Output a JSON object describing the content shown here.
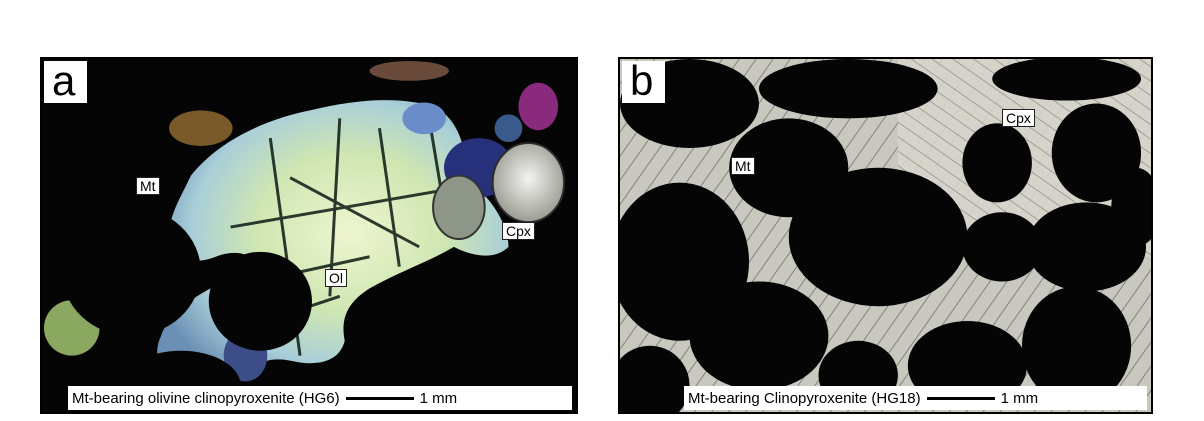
{
  "panels": {
    "a": {
      "letter": "a",
      "labels": {
        "mt": "Mt",
        "ol": "Ol",
        "cpx": "Cpx"
      },
      "caption": "Mt-bearing olivine clinopyroxenite (HG6)",
      "scale": "1 mm"
    },
    "b": {
      "letter": "b",
      "labels": {
        "mt": "Mt",
        "cpx": "Cpx"
      },
      "caption": "Mt-bearing Clinopyroxenite (HG18)",
      "scale": "1 mm"
    }
  },
  "colors": {
    "background": "#ffffff",
    "opaque": "#050505",
    "olivine": "#d8e8b8",
    "clinopyroxene": "#c8c4b8"
  }
}
